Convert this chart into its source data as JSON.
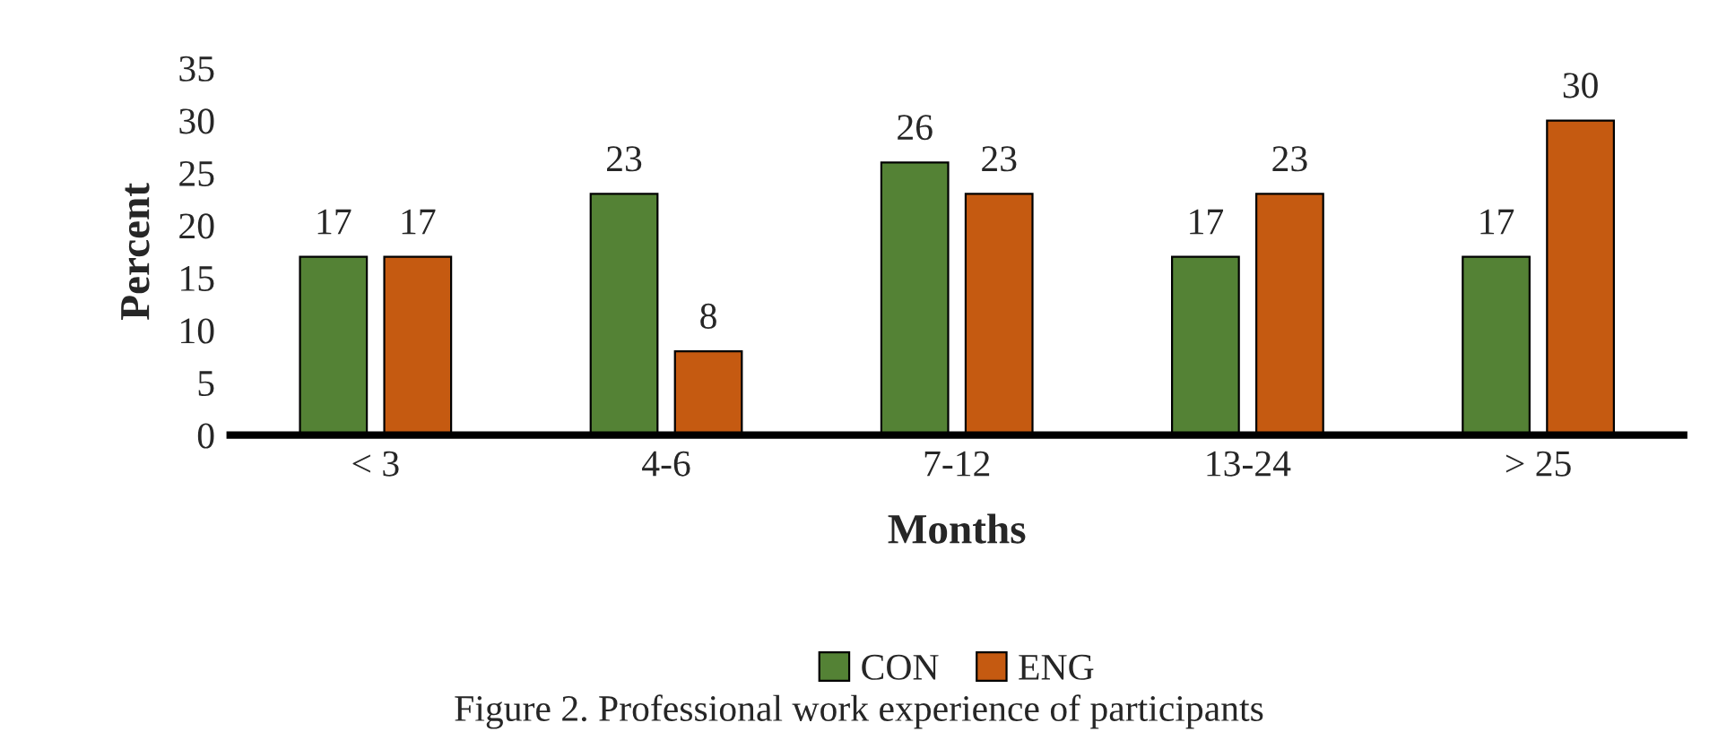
{
  "chart_data": {
    "type": "bar",
    "xlabel": "Months",
    "ylabel": "Percent",
    "categories": [
      "< 3",
      "4-6",
      "7-12",
      "13-24",
      "> 25"
    ],
    "series": [
      {
        "name": "CON",
        "color": "#548235",
        "values": [
          17,
          23,
          26,
          17,
          17
        ]
      },
      {
        "name": "ENG",
        "color": "#c55a11",
        "values": [
          17,
          8,
          23,
          23,
          30
        ]
      }
    ],
    "ylim": [
      0,
      35
    ],
    "yticks": [
      0,
      5,
      10,
      15,
      20,
      25,
      30,
      35
    ],
    "data_labels": true,
    "legend": "bottom",
    "grid": false,
    "annotations": [
      "Figure 2. Professional work experience of participants"
    ]
  }
}
